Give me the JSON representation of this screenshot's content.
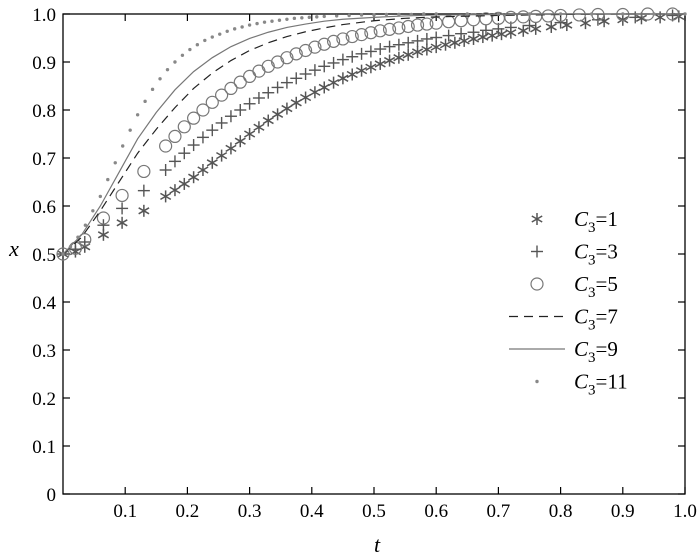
{
  "chart_data": {
    "type": "scatter",
    "xlabel": "t",
    "ylabel": "x",
    "xlim": [
      0,
      1
    ],
    "ylim": [
      0,
      1
    ],
    "x_ticks": [
      "0.1",
      "0.2",
      "0.3",
      "0.4",
      "0.5",
      "0.6",
      "0.7",
      "0.8",
      "0.9",
      "1.0"
    ],
    "y_ticks": [
      "0",
      "0.1",
      "0.2",
      "0.3",
      "0.4",
      "0.5",
      "0.6",
      "0.7",
      "0.8",
      "0.9",
      "1.0"
    ],
    "grid": false,
    "legend_position": "right",
    "series": [
      {
        "name": "C3=1",
        "label_main": "C",
        "label_sub": "3",
        "label_rest": "=1",
        "marker": "asterisk",
        "color": "#555555",
        "style": "markers",
        "x": [
          0.0,
          0.02,
          0.035,
          0.065,
          0.095,
          0.13,
          0.165,
          0.18,
          0.195,
          0.21,
          0.225,
          0.24,
          0.255,
          0.27,
          0.285,
          0.3,
          0.315,
          0.33,
          0.345,
          0.36,
          0.375,
          0.39,
          0.405,
          0.42,
          0.435,
          0.45,
          0.465,
          0.48,
          0.495,
          0.51,
          0.525,
          0.54,
          0.555,
          0.57,
          0.585,
          0.6,
          0.615,
          0.63,
          0.645,
          0.66,
          0.675,
          0.69,
          0.705,
          0.72,
          0.74,
          0.76,
          0.785,
          0.81,
          0.84,
          0.87,
          0.9,
          0.93,
          0.96,
          0.99
        ],
        "y": [
          0.5,
          0.505,
          0.515,
          0.54,
          0.565,
          0.59,
          0.62,
          0.633,
          0.646,
          0.66,
          0.675,
          0.69,
          0.705,
          0.72,
          0.735,
          0.75,
          0.764,
          0.778,
          0.791,
          0.803,
          0.815,
          0.826,
          0.837,
          0.847,
          0.857,
          0.866,
          0.874,
          0.882,
          0.889,
          0.896,
          0.903,
          0.909,
          0.915,
          0.921,
          0.926,
          0.931,
          0.936,
          0.94,
          0.944,
          0.948,
          0.952,
          0.955,
          0.958,
          0.961,
          0.965,
          0.969,
          0.973,
          0.977,
          0.981,
          0.985,
          0.988,
          0.991,
          0.993,
          0.995
        ]
      },
      {
        "name": "C3=3",
        "label_main": "C",
        "label_sub": "3",
        "label_rest": "=3",
        "marker": "plus",
        "color": "#555555",
        "style": "markers",
        "x": [
          0.0,
          0.02,
          0.035,
          0.065,
          0.095,
          0.13,
          0.165,
          0.18,
          0.195,
          0.21,
          0.225,
          0.24,
          0.255,
          0.27,
          0.285,
          0.3,
          0.315,
          0.33,
          0.345,
          0.36,
          0.375,
          0.39,
          0.405,
          0.42,
          0.435,
          0.45,
          0.465,
          0.48,
          0.495,
          0.51,
          0.525,
          0.54,
          0.555,
          0.57,
          0.585,
          0.6,
          0.62,
          0.64,
          0.66,
          0.68,
          0.7,
          0.72,
          0.75,
          0.8,
          0.86,
          0.92,
          0.98
        ],
        "y": [
          0.5,
          0.51,
          0.525,
          0.56,
          0.595,
          0.632,
          0.675,
          0.693,
          0.71,
          0.727,
          0.743,
          0.758,
          0.773,
          0.787,
          0.8,
          0.813,
          0.825,
          0.836,
          0.847,
          0.857,
          0.866,
          0.875,
          0.883,
          0.891,
          0.898,
          0.905,
          0.911,
          0.917,
          0.922,
          0.927,
          0.932,
          0.936,
          0.94,
          0.944,
          0.948,
          0.951,
          0.955,
          0.959,
          0.962,
          0.966,
          0.969,
          0.972,
          0.976,
          0.982,
          0.988,
          0.993,
          0.997
        ]
      },
      {
        "name": "C3=5",
        "label_main": "C",
        "label_sub": "3",
        "label_rest": "=5",
        "marker": "circle",
        "color": "#777777",
        "style": "markers",
        "x": [
          0.0,
          0.02,
          0.035,
          0.065,
          0.095,
          0.13,
          0.165,
          0.18,
          0.195,
          0.21,
          0.225,
          0.24,
          0.255,
          0.27,
          0.285,
          0.3,
          0.315,
          0.33,
          0.345,
          0.36,
          0.375,
          0.39,
          0.405,
          0.42,
          0.435,
          0.45,
          0.465,
          0.48,
          0.495,
          0.51,
          0.525,
          0.54,
          0.555,
          0.57,
          0.585,
          0.6,
          0.62,
          0.64,
          0.66,
          0.68,
          0.7,
          0.72,
          0.74,
          0.76,
          0.78,
          0.8,
          0.83,
          0.86,
          0.9,
          0.94,
          0.98
        ],
        "y": [
          0.5,
          0.512,
          0.53,
          0.575,
          0.622,
          0.672,
          0.725,
          0.745,
          0.765,
          0.783,
          0.8,
          0.816,
          0.831,
          0.845,
          0.858,
          0.87,
          0.881,
          0.891,
          0.9,
          0.909,
          0.917,
          0.924,
          0.931,
          0.937,
          0.943,
          0.948,
          0.953,
          0.957,
          0.961,
          0.965,
          0.968,
          0.971,
          0.974,
          0.977,
          0.979,
          0.981,
          0.984,
          0.986,
          0.988,
          0.99,
          0.991,
          0.993,
          0.994,
          0.995,
          0.996,
          0.997,
          0.998,
          0.999,
          0.999,
          1.0,
          1.0
        ]
      },
      {
        "name": "C3=7",
        "label_main": "C",
        "label_sub": "3",
        "label_rest": "=7",
        "marker": "none",
        "color": "#222222",
        "style": "dashed",
        "x": [
          0.0,
          0.03,
          0.06,
          0.09,
          0.12,
          0.15,
          0.18,
          0.21,
          0.24,
          0.27,
          0.3,
          0.33,
          0.36,
          0.39,
          0.42,
          0.45,
          0.5,
          0.55,
          0.6,
          0.7,
          0.8,
          0.9,
          1.0
        ],
        "y": [
          0.5,
          0.535,
          0.59,
          0.65,
          0.71,
          0.76,
          0.805,
          0.845,
          0.877,
          0.903,
          0.924,
          0.94,
          0.953,
          0.963,
          0.971,
          0.978,
          0.986,
          0.991,
          0.994,
          0.997,
          0.999,
          1.0,
          1.0
        ]
      },
      {
        "name": "C3=9",
        "label_main": "C",
        "label_sub": "3",
        "label_rest": "=9",
        "marker": "none",
        "color": "#777777",
        "style": "solid",
        "x": [
          0.0,
          0.03,
          0.06,
          0.09,
          0.12,
          0.15,
          0.18,
          0.21,
          0.24,
          0.27,
          0.3,
          0.33,
          0.36,
          0.39,
          0.42,
          0.45,
          0.5,
          0.55,
          0.6,
          0.7,
          0.8,
          0.9,
          1.0
        ],
        "y": [
          0.5,
          0.54,
          0.6,
          0.67,
          0.74,
          0.795,
          0.842,
          0.88,
          0.909,
          0.932,
          0.949,
          0.962,
          0.972,
          0.979,
          0.985,
          0.989,
          0.993,
          0.996,
          0.998,
          0.999,
          1.0,
          1.0,
          1.0
        ]
      },
      {
        "name": "C3=11",
        "label_main": "C",
        "label_sub": "3",
        "label_rest": "=11",
        "marker": "dot",
        "color": "#888888",
        "style": "markers",
        "x": [
          0.0,
          0.012,
          0.024,
          0.036,
          0.048,
          0.06,
          0.072,
          0.084,
          0.096,
          0.108,
          0.12,
          0.132,
          0.144,
          0.156,
          0.168,
          0.18,
          0.192,
          0.204,
          0.216,
          0.228,
          0.24,
          0.252,
          0.264,
          0.276,
          0.288,
          0.3,
          0.312,
          0.324,
          0.336,
          0.348,
          0.36,
          0.372,
          0.384,
          0.396,
          0.408,
          0.42,
          0.44,
          0.46,
          0.48,
          0.5,
          0.52,
          0.54,
          0.56,
          0.58,
          0.6,
          0.65,
          0.7,
          0.75,
          0.8,
          0.85,
          0.9,
          0.95,
          1.0
        ],
        "y": [
          0.5,
          0.515,
          0.535,
          0.56,
          0.59,
          0.62,
          0.655,
          0.69,
          0.725,
          0.758,
          0.79,
          0.818,
          0.843,
          0.865,
          0.884,
          0.9,
          0.914,
          0.926,
          0.936,
          0.945,
          0.952,
          0.958,
          0.964,
          0.969,
          0.973,
          0.977,
          0.98,
          0.983,
          0.985,
          0.987,
          0.989,
          0.991,
          0.992,
          0.993,
          0.994,
          0.995,
          0.996,
          0.997,
          0.998,
          0.998,
          0.999,
          0.999,
          0.999,
          1.0,
          1.0,
          1.0,
          1.0,
          1.0,
          1.0,
          1.0,
          1.0,
          1.0,
          1.0
        ]
      }
    ]
  }
}
